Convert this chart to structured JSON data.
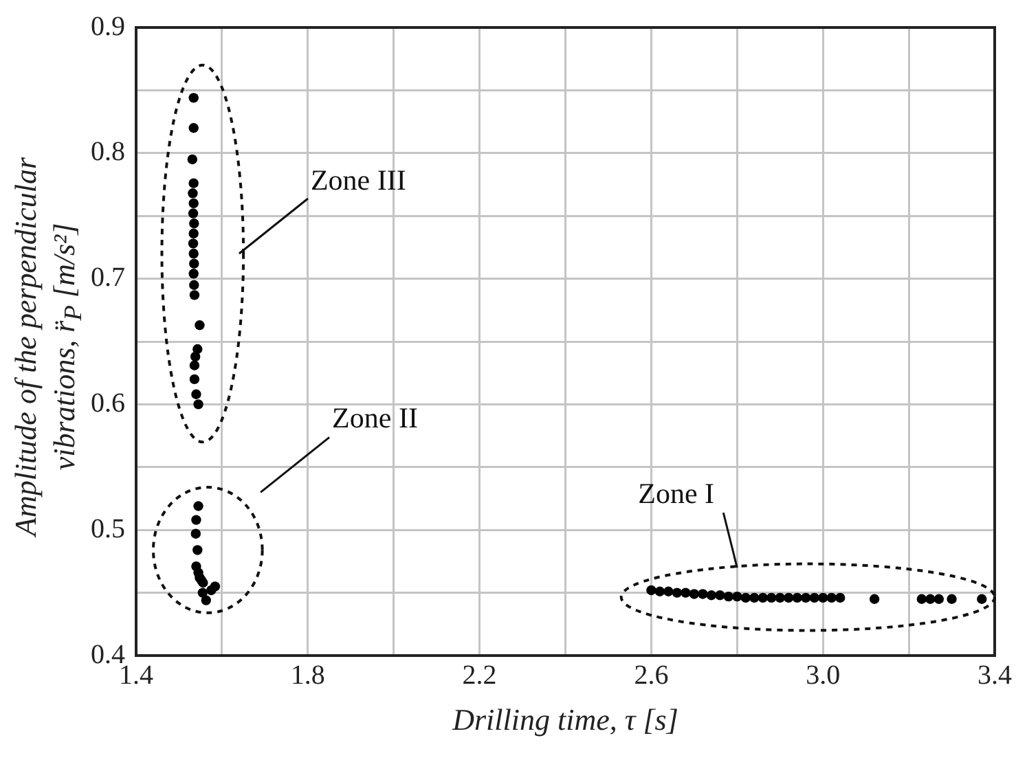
{
  "chart_data": {
    "type": "scatter",
    "xlabel": "Drilling time, τ [s]",
    "ylabel": "Amplitude of the perpendicular vibrations, r̈$_{P}$ [m/s²]",
    "xlim": [
      1.4,
      3.4
    ],
    "ylim": [
      0.4,
      0.9
    ],
    "xticks": [
      1.4,
      {
        "value": 1.6,
        "label": null
      },
      1.8,
      {
        "value": 2.0,
        "label": null
      },
      2.2,
      {
        "value": 2.4,
        "label": null
      },
      2.6,
      {
        "value": 2.8,
        "label": null
      },
      {
        "value": 3.0,
        "label": "3.0"
      },
      {
        "value": 3.2,
        "label": null
      },
      3.4
    ],
    "yticks": [
      0.4,
      {
        "value": 0.45,
        "label": null
      },
      0.5,
      {
        "value": 0.55,
        "label": null
      },
      0.6,
      {
        "value": 0.65,
        "label": null
      },
      0.7,
      {
        "value": 0.75,
        "label": null
      },
      0.8,
      {
        "value": 0.85,
        "label": null
      },
      0.9
    ],
    "grid": true,
    "legend": false,
    "marker": "circle",
    "series": [
      {
        "color": "#000000",
        "x": [
          1.534,
          1.534,
          1.531,
          1.534,
          1.532,
          1.534,
          1.533,
          1.535,
          1.534,
          1.533,
          1.534,
          1.535,
          1.534,
          1.535,
          1.536,
          1.548,
          1.543,
          1.538,
          1.536,
          1.536,
          1.54,
          1.545,
          1.545,
          1.54,
          1.539,
          1.543,
          1.54,
          1.545,
          1.548,
          1.552,
          1.556,
          1.584,
          1.575,
          1.563,
          1.555,
          2.6,
          2.62,
          2.64,
          2.66,
          2.68,
          2.7,
          2.72,
          2.74,
          2.76,
          2.78,
          2.8,
          2.82,
          2.84,
          2.86,
          2.88,
          2.9,
          2.92,
          2.94,
          2.96,
          2.98,
          3.0,
          3.02,
          3.04,
          3.12,
          3.23,
          3.25,
          3.27,
          3.3,
          3.37
        ],
        "values": [
          0.844,
          0.82,
          0.795,
          0.776,
          0.768,
          0.76,
          0.752,
          0.744,
          0.736,
          0.728,
          0.72,
          0.712,
          0.704,
          0.695,
          0.687,
          0.663,
          0.644,
          0.638,
          0.631,
          0.62,
          0.608,
          0.6,
          0.519,
          0.508,
          0.497,
          0.484,
          0.471,
          0.466,
          0.462,
          0.46,
          0.458,
          0.455,
          0.452,
          0.444,
          0.45,
          0.452,
          0.451,
          0.451,
          0.45,
          0.45,
          0.449,
          0.449,
          0.448,
          0.448,
          0.447,
          0.447,
          0.446,
          0.446,
          0.446,
          0.446,
          0.446,
          0.446,
          0.446,
          0.446,
          0.446,
          0.446,
          0.446,
          0.446,
          0.445,
          0.445,
          0.445,
          0.445,
          0.445,
          0.445
        ]
      }
    ],
    "annotations": [
      "Zone III",
      "Zone II",
      "Zone I"
    ]
  }
}
